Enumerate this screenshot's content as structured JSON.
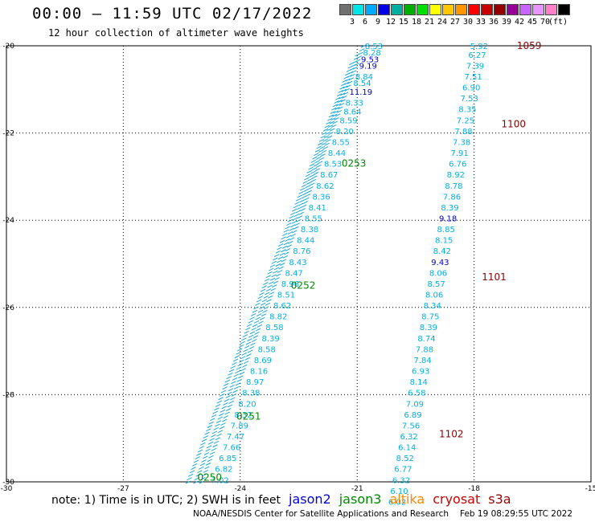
{
  "header": {
    "title": "00:00 – 11:59 UTC 02/17/2022",
    "subtitle": "12 hour collection of altimeter wave heights"
  },
  "legend": {
    "colors": [
      "#707070",
      "#00e5e5",
      "#00aaff",
      "#0000e6",
      "#00b0a0",
      "#00b000",
      "#00e000",
      "#ffff00",
      "#ffc800",
      "#ff9600",
      "#ff0000",
      "#c80000",
      "#960000",
      "#960096",
      "#c864ff",
      "#e696ff",
      "#ff80c8",
      "#000000"
    ],
    "labels": [
      "3",
      "6",
      "9",
      "12",
      "15",
      "18",
      "21",
      "24",
      "27",
      "30",
      "33",
      "36",
      "39",
      "42",
      "45",
      "70",
      "(ft)"
    ]
  },
  "footer": {
    "note": "note: 1) Time is in UTC; 2) SWH is in feet",
    "satellites": [
      {
        "name": "jason2",
        "color": "#0000dd"
      },
      {
        "name": "jason3",
        "color": "#008800"
      },
      {
        "name": "altika",
        "color": "#ff8800"
      },
      {
        "name": "cryosat",
        "color": "#cc0000"
      },
      {
        "name": "s3a",
        "color": "#990000"
      }
    ],
    "credit": "NOAA/NESDIS Center for Satellite Applications and Research",
    "timestamp": "Feb 19 08:29:55 UTC 2022"
  },
  "chart_data": {
    "type": "scatter",
    "x_ticks": [
      "-30",
      "-27",
      "-24",
      "-21",
      "-18",
      "-15"
    ],
    "y_ticks": [
      "-20",
      "-22",
      "-24",
      "-26",
      "-28",
      "-30"
    ],
    "xlim": [
      -30,
      -15
    ],
    "ylim": [
      -30,
      -20
    ],
    "grid": true,
    "passes": [
      {
        "label": "1059",
        "time_label_lon": -16.9,
        "time_label_lat": -20.0,
        "color": "#880000"
      },
      {
        "label": "1100",
        "time_label_lon": -17.3,
        "time_label_lat": -21.8,
        "color": "#880000"
      },
      {
        "label": "1101",
        "time_label_lon": -17.8,
        "time_label_lat": -25.3,
        "color": "#880000"
      },
      {
        "label": "1102",
        "time_label_lon": -18.9,
        "time_label_lat": -28.9,
        "color": "#880000"
      },
      {
        "label": "0253",
        "time_label_lon": -21.4,
        "time_label_lat": -22.7,
        "color": "#008800"
      },
      {
        "label": "0252",
        "time_label_lon": -22.7,
        "time_label_lat": -25.5,
        "color": "#008800"
      },
      {
        "label": "0251",
        "time_label_lon": -24.1,
        "time_label_lat": -28.5,
        "color": "#008800"
      },
      {
        "label": "0250",
        "time_label_lon": -25.1,
        "time_label_lat": -29.9,
        "color": "#008800"
      }
    ],
    "points": [
      {
        "lon": -18.1,
        "lat": -20.0,
        "swh": "5.92",
        "color": "#00b0e0"
      },
      {
        "lon": -18.15,
        "lat": -20.2,
        "swh": "6.27",
        "color": "#00b0e0"
      },
      {
        "lon": -18.2,
        "lat": -20.45,
        "swh": "7.39",
        "color": "#00b0e0"
      },
      {
        "lon": -18.25,
        "lat": -20.7,
        "swh": "7.51",
        "color": "#00b0e0"
      },
      {
        "lon": -18.3,
        "lat": -20.95,
        "swh": "6.90",
        "color": "#00b0e0"
      },
      {
        "lon": -18.35,
        "lat": -21.2,
        "swh": "7.53",
        "color": "#00b0e0"
      },
      {
        "lon": -18.4,
        "lat": -21.45,
        "swh": "8.35",
        "color": "#00b0e0"
      },
      {
        "lon": -18.45,
        "lat": -21.7,
        "swh": "7.25",
        "color": "#00b0e0"
      },
      {
        "lon": -18.5,
        "lat": -21.95,
        "swh": "7.88",
        "color": "#00b0e0"
      },
      {
        "lon": -18.55,
        "lat": -22.2,
        "swh": "7.38",
        "color": "#00b0e0"
      },
      {
        "lon": -18.6,
        "lat": -22.45,
        "swh": "7.91",
        "color": "#00b0e0"
      },
      {
        "lon": -18.65,
        "lat": -22.7,
        "swh": "6.76",
        "color": "#00b0e0"
      },
      {
        "lon": -18.7,
        "lat": -22.95,
        "swh": "8.92",
        "color": "#00b0e0"
      },
      {
        "lon": -18.75,
        "lat": -23.2,
        "swh": "8.78",
        "color": "#00b0e0"
      },
      {
        "lon": -18.8,
        "lat": -23.45,
        "swh": "7.86",
        "color": "#00b0e0"
      },
      {
        "lon": -18.85,
        "lat": -23.7,
        "swh": "8.39",
        "color": "#00b0e0"
      },
      {
        "lon": -18.9,
        "lat": -23.95,
        "swh": "9.18",
        "color": "#0000cc"
      },
      {
        "lon": -18.95,
        "lat": -24.2,
        "swh": "8.85",
        "color": "#00b0e0"
      },
      {
        "lon": -19.0,
        "lat": -24.45,
        "swh": "8.15",
        "color": "#00b0e0"
      },
      {
        "lon": -19.05,
        "lat": -24.7,
        "swh": "8.42",
        "color": "#00b0e0"
      },
      {
        "lon": -19.1,
        "lat": -24.95,
        "swh": "9.43",
        "color": "#0000cc"
      },
      {
        "lon": -19.15,
        "lat": -25.2,
        "swh": "8.06",
        "color": "#00b0e0"
      },
      {
        "lon": -19.2,
        "lat": -25.45,
        "swh": "8.57",
        "color": "#00b0e0"
      },
      {
        "lon": -19.25,
        "lat": -25.7,
        "swh": "8.06",
        "color": "#00b0e0"
      },
      {
        "lon": -19.3,
        "lat": -25.95,
        "swh": "8.34",
        "color": "#00b0e0"
      },
      {
        "lon": -19.35,
        "lat": -26.2,
        "swh": "8.75",
        "color": "#00b0e0"
      },
      {
        "lon": -19.4,
        "lat": -26.45,
        "swh": "8.39",
        "color": "#00b0e0"
      },
      {
        "lon": -19.45,
        "lat": -26.7,
        "swh": "8.74",
        "color": "#00b0e0"
      },
      {
        "lon": -19.5,
        "lat": -26.95,
        "swh": "7.88",
        "color": "#00b0e0"
      },
      {
        "lon": -19.55,
        "lat": -27.2,
        "swh": "7.84",
        "color": "#00b0e0"
      },
      {
        "lon": -19.6,
        "lat": -27.45,
        "swh": "6.93",
        "color": "#00b0e0"
      },
      {
        "lon": -19.65,
        "lat": -27.7,
        "swh": "8.14",
        "color": "#00b0e0"
      },
      {
        "lon": -19.7,
        "lat": -27.95,
        "swh": "6.58",
        "color": "#00b0e0"
      },
      {
        "lon": -19.75,
        "lat": -28.2,
        "swh": "7.09",
        "color": "#00b0e0"
      },
      {
        "lon": -19.8,
        "lat": -28.45,
        "swh": "6.89",
        "color": "#00b0e0"
      },
      {
        "lon": -19.85,
        "lat": -28.7,
        "swh": "7.56",
        "color": "#00b0e0"
      },
      {
        "lon": -19.9,
        "lat": -28.95,
        "swh": "6.32",
        "color": "#00b0e0"
      },
      {
        "lon": -19.95,
        "lat": -29.2,
        "swh": "6.14",
        "color": "#00b0e0"
      },
      {
        "lon": -20.0,
        "lat": -29.45,
        "swh": "8.52",
        "color": "#00b0e0"
      },
      {
        "lon": -20.05,
        "lat": -29.7,
        "swh": "6.77",
        "color": "#00b0e0"
      },
      {
        "lon": -20.1,
        "lat": -29.95,
        "swh": "6.32",
        "color": "#00b0e0"
      },
      {
        "lon": -20.15,
        "lat": -30.2,
        "swh": "6.10",
        "color": "#00b0e0"
      },
      {
        "lon": -20.2,
        "lat": -30.45,
        "swh": "6.02",
        "color": "#00b0e0"
      },
      {
        "lon": -20.8,
        "lat": -20.0,
        "swh": "8.53",
        "color": "#00b0e0"
      },
      {
        "lon": -20.85,
        "lat": -20.15,
        "swh": "8.28",
        "color": "#00b0e0"
      },
      {
        "lon": -20.9,
        "lat": -20.3,
        "swh": "9.53",
        "color": "#0000cc"
      },
      {
        "lon": -20.95,
        "lat": -20.45,
        "swh": "9.19",
        "color": "#0000cc"
      },
      {
        "lon": -21.05,
        "lat": -20.7,
        "swh": "8.84",
        "color": "#00b0e0"
      },
      {
        "lon": -21.1,
        "lat": -20.85,
        "swh": "8.54",
        "color": "#00b0e0"
      },
      {
        "lon": -21.2,
        "lat": -21.05,
        "swh": "11.19",
        "color": "#0000aa"
      },
      {
        "lon": -21.3,
        "lat": -21.3,
        "swh": "8.33",
        "color": "#00b0e0"
      },
      {
        "lon": -21.35,
        "lat": -21.5,
        "swh": "8.64",
        "color": "#00b0e0"
      },
      {
        "lon": -21.45,
        "lat": -21.7,
        "swh": "8.59",
        "color": "#00b0e0"
      },
      {
        "lon": -21.55,
        "lat": -21.95,
        "swh": "8.20",
        "color": "#00b0e0"
      },
      {
        "lon": -21.65,
        "lat": -22.2,
        "swh": "8.55",
        "color": "#00b0e0"
      },
      {
        "lon": -21.75,
        "lat": -22.45,
        "swh": "8.44",
        "color": "#00b0e0"
      },
      {
        "lon": -21.85,
        "lat": -22.7,
        "swh": "8.53",
        "color": "#00b0e0"
      },
      {
        "lon": -21.95,
        "lat": -22.95,
        "swh": "8.67",
        "color": "#00b0e0"
      },
      {
        "lon": -22.05,
        "lat": -23.2,
        "swh": "8.62",
        "color": "#00b0e0"
      },
      {
        "lon": -22.15,
        "lat": -23.45,
        "swh": "8.36",
        "color": "#00b0e0"
      },
      {
        "lon": -22.25,
        "lat": -23.7,
        "swh": "8.41",
        "color": "#00b0e0"
      },
      {
        "lon": -22.35,
        "lat": -23.95,
        "swh": "8.55",
        "color": "#00b0e0"
      },
      {
        "lon": -22.45,
        "lat": -24.2,
        "swh": "8.38",
        "color": "#00b0e0"
      },
      {
        "lon": -22.55,
        "lat": -24.45,
        "swh": "8.44",
        "color": "#00b0e0"
      },
      {
        "lon": -22.65,
        "lat": -24.7,
        "swh": "8.76",
        "color": "#00b0e0"
      },
      {
        "lon": -22.75,
        "lat": -24.95,
        "swh": "8.43",
        "color": "#00b0e0"
      },
      {
        "lon": -22.85,
        "lat": -25.2,
        "swh": "8.47",
        "color": "#00b0e0"
      },
      {
        "lon": -22.95,
        "lat": -25.45,
        "swh": "8.96",
        "color": "#00b0e0"
      },
      {
        "lon": -23.05,
        "lat": -25.7,
        "swh": "8.51",
        "color": "#00b0e0"
      },
      {
        "lon": -23.15,
        "lat": -25.95,
        "swh": "8.62",
        "color": "#00b0e0"
      },
      {
        "lon": -23.25,
        "lat": -26.2,
        "swh": "8.82",
        "color": "#00b0e0"
      },
      {
        "lon": -23.35,
        "lat": -26.45,
        "swh": "8.58",
        "color": "#00b0e0"
      },
      {
        "lon": -23.45,
        "lat": -26.7,
        "swh": "8.39",
        "color": "#00b0e0"
      },
      {
        "lon": -23.55,
        "lat": -26.95,
        "swh": "8.58",
        "color": "#00b0e0"
      },
      {
        "lon": -23.65,
        "lat": -27.2,
        "swh": "8.69",
        "color": "#00b0e0"
      },
      {
        "lon": -23.75,
        "lat": -27.45,
        "swh": "8.16",
        "color": "#00b0e0"
      },
      {
        "lon": -23.85,
        "lat": -27.7,
        "swh": "8.97",
        "color": "#00b0e0"
      },
      {
        "lon": -23.95,
        "lat": -27.95,
        "swh": "8.38",
        "color": "#00b0e0"
      },
      {
        "lon": -24.05,
        "lat": -28.2,
        "swh": "8.20",
        "color": "#00b0e0"
      },
      {
        "lon": -24.15,
        "lat": -28.45,
        "swh": "8.32",
        "color": "#00b0e0"
      },
      {
        "lon": -24.25,
        "lat": -28.7,
        "swh": "7.89",
        "color": "#00b0e0"
      },
      {
        "lon": -24.35,
        "lat": -28.95,
        "swh": "7.47",
        "color": "#00b0e0"
      },
      {
        "lon": -24.45,
        "lat": -29.2,
        "swh": "7.66",
        "color": "#00b0e0"
      },
      {
        "lon": -24.55,
        "lat": -29.45,
        "swh": "6.85",
        "color": "#00b0e0"
      },
      {
        "lon": -24.65,
        "lat": -29.7,
        "swh": "6.82",
        "color": "#00b0e0"
      },
      {
        "lon": -24.75,
        "lat": -29.95,
        "swh": "7.02",
        "color": "#00b0e0"
      }
    ]
  }
}
